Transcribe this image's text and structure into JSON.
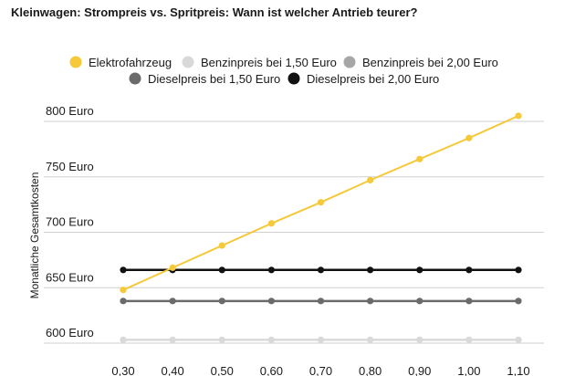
{
  "chart_data": {
    "type": "line",
    "title": "Kleinwagen: Strompreis vs. Spritpreis: Wann ist welcher Antrieb teurer?",
    "ylabel": "Monatliche Gesamtkosten",
    "xlabel": "",
    "x": [
      0.3,
      0.4,
      0.5,
      0.6,
      0.7,
      0.8,
      0.9,
      1.0,
      1.1
    ],
    "x_tick_labels": [
      "0,30",
      "0,40",
      "0,50",
      "0,60",
      "0,70",
      "0,80",
      "0,90",
      "1,00",
      "1,10"
    ],
    "y_tick_values": [
      600,
      650,
      700,
      750,
      800
    ],
    "y_tick_labels": [
      "600 Euro",
      "650 Euro",
      "700 Euro",
      "750 Euro",
      "800 Euro"
    ],
    "ylim": [
      595,
      805
    ],
    "grid": "horizontal",
    "legend_position": "top",
    "series": [
      {
        "name": "Elektrofahrzeug",
        "color": "#f5c93a",
        "values": [
          648,
          668,
          688,
          708,
          727,
          747,
          766,
          785,
          805
        ]
      },
      {
        "name": "Benzinpreis bei 1,50 Euro",
        "color": "#d9d9d9",
        "values": [
          603,
          603,
          603,
          603,
          603,
          603,
          603,
          603,
          603
        ]
      },
      {
        "name": "Benzinpreis bei 2,00 Euro",
        "color": "#a6a6a6",
        "values": [
          null,
          null,
          null,
          null,
          null,
          null,
          null,
          null,
          null
        ]
      },
      {
        "name": "Dieselpreis bei 1,50 Euro",
        "color": "#6b6b6b",
        "values": [
          638,
          638,
          638,
          638,
          638,
          638,
          638,
          638,
          638
        ]
      },
      {
        "name": "Dieselpreis bei 2,00 Euro",
        "color": "#111111",
        "values": [
          666,
          666,
          666,
          666,
          666,
          666,
          666,
          666,
          666
        ]
      }
    ]
  }
}
